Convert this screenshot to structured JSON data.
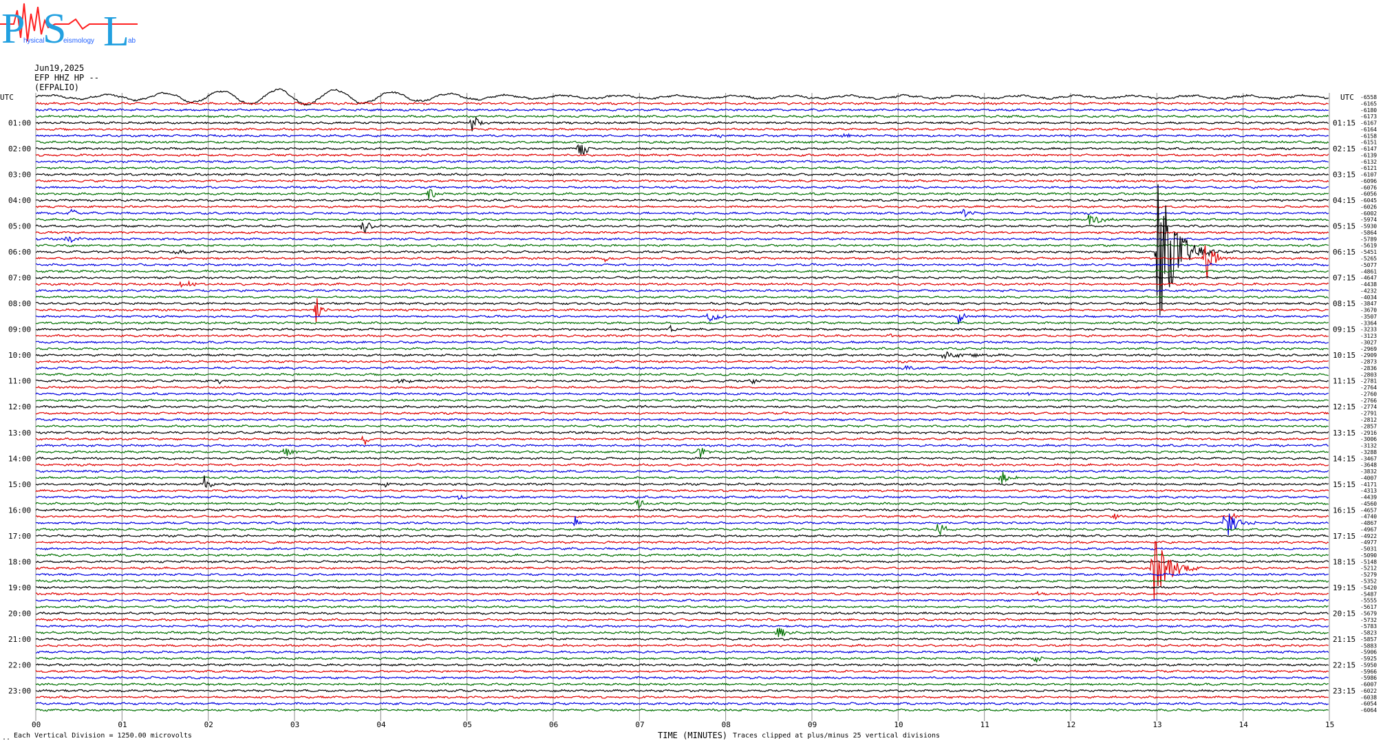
{
  "logo": {
    "letters": [
      "P",
      "S",
      "L"
    ],
    "words": [
      "hysical",
      "eismology",
      "ab"
    ]
  },
  "header": {
    "date": "Jun19,2025",
    "channel": "EFP HHZ HP --",
    "station": "(EFPALIO)"
  },
  "left_axis_label": "UTC",
  "right_axis_label": "UTC",
  "footer": {
    "corner_mark": "..",
    "scale": "Each Vertical Division = 1250.00 microvolts",
    "xlabel": "TIME (MINUTES)",
    "clip_note": "Traces clipped at plus/minus 25 vertical divisions"
  },
  "colors": {
    "cycle": [
      "#000000",
      "#e00000",
      "#0000e0",
      "#007000"
    ],
    "grid": "#8c8c8c"
  },
  "chart_data": {
    "type": "line",
    "title": "",
    "xlabel": "TIME (MINUTES)",
    "xlim": [
      0,
      15
    ],
    "x_ticks": [
      "00",
      "01",
      "02",
      "03",
      "04",
      "05",
      "06",
      "07",
      "08",
      "09",
      "10",
      "11",
      "12",
      "13",
      "14",
      "15"
    ],
    "rows_per_hour": 4,
    "minutes_per_row": 15,
    "row_count": 96,
    "left_hour_labels": [
      "01:00",
      "02:00",
      "03:00",
      "04:00",
      "05:00",
      "06:00",
      "07:00",
      "08:00",
      "09:00",
      "10:00",
      "11:00",
      "12:00",
      "13:00",
      "14:00",
      "15:00",
      "16:00",
      "17:00",
      "18:00",
      "19:00",
      "20:00",
      "21:00",
      "22:00",
      "23:00"
    ],
    "right_hour_labels": [
      "01:15",
      "02:15",
      "03:15",
      "04:15",
      "05:15",
      "06:15",
      "07:15",
      "08:15",
      "09:15",
      "10:15",
      "11:15",
      "12:15",
      "13:15",
      "14:15",
      "15:15",
      "16:15",
      "17:15",
      "18:15",
      "19:15",
      "20:15",
      "21:15",
      "22:15",
      "23:15"
    ],
    "row_offsets": [
      "-6558",
      "-6165",
      "-6180",
      "-6173",
      "-6167",
      "-6164",
      "-6158",
      "-6151",
      "-6147",
      "-6139",
      "-6132",
      "-6121",
      "-6107",
      "-6096",
      "-6076",
      "-6056",
      "-6045",
      "-6026",
      "-6002",
      "-5974",
      "-5930",
      "-5864",
      "-5789",
      "-5619",
      "-5451",
      "-5265",
      "-5077",
      "-4861",
      "-4647",
      "-4438",
      "-4232",
      "-4034",
      "-3847",
      "-3670",
      "-3507",
      "-3364",
      "-3233",
      "-3123",
      "-3027",
      "-2969",
      "-2909",
      "-2873",
      "-2836",
      "-2803",
      "-2781",
      "-2764",
      "-2760",
      "-2766",
      "-2774",
      "-2791",
      "-2812",
      "-2857",
      "-2916",
      "-3006",
      "-3132",
      "-3288",
      "-3467",
      "-3648",
      "-3832",
      "-4007",
      "-4171",
      "-4313",
      "-4439",
      "-4560",
      "-4657",
      "-4740",
      "-4867",
      "-4967",
      "-4922",
      "-4977",
      "-5031",
      "-5090",
      "-5148",
      "-5212",
      "-5279",
      "-5352",
      "-5420",
      "-5487",
      "-5555",
      "-5617",
      "-5679",
      "-5732",
      "-5783",
      "-5823",
      "-5857",
      "-5883",
      "-5906",
      "-5925",
      "-5950",
      "-5966",
      "-5986",
      "-6007",
      "-6022",
      "-6038",
      "-6054",
      "-6064"
    ],
    "swell_rows": [
      0
    ],
    "events": [
      {
        "row": 4,
        "minute": 5.05,
        "amp": 14,
        "duration": 0.35
      },
      {
        "row": 6,
        "minute": 7.9,
        "amp": 4,
        "duration": 0.4
      },
      {
        "row": 6,
        "minute": 9.35,
        "amp": 4,
        "duration": 0.4
      },
      {
        "row": 7,
        "minute": 1.5,
        "amp": 3,
        "duration": 0.2
      },
      {
        "row": 8,
        "minute": 6.3,
        "amp": 26,
        "duration": 0.3
      },
      {
        "row": 15,
        "minute": 4.55,
        "amp": 13,
        "duration": 0.3
      },
      {
        "row": 18,
        "minute": 0.4,
        "amp": 5,
        "duration": 0.5
      },
      {
        "row": 18,
        "minute": 10.75,
        "amp": 10,
        "duration": 0.3
      },
      {
        "row": 19,
        "minute": 12.2,
        "amp": 10,
        "duration": 0.6
      },
      {
        "row": 20,
        "minute": 3.8,
        "amp": 16,
        "duration": 0.3
      },
      {
        "row": 22,
        "minute": 0.35,
        "amp": 7,
        "duration": 0.6
      },
      {
        "row": 24,
        "minute": 1.6,
        "amp": 5,
        "duration": 0.6
      },
      {
        "row": 24,
        "minute": 13.0,
        "amp": 120,
        "duration": 0.9
      },
      {
        "row": 25,
        "minute": 6.6,
        "amp": 5,
        "duration": 0.4
      },
      {
        "row": 25,
        "minute": 13.55,
        "amp": 45,
        "duration": 0.4
      },
      {
        "row": 29,
        "minute": 1.7,
        "amp": 14,
        "duration": 0.3
      },
      {
        "row": 33,
        "minute": 3.25,
        "amp": 28,
        "duration": 0.2
      },
      {
        "row": 34,
        "minute": 7.8,
        "amp": 10,
        "duration": 0.5
      },
      {
        "row": 34,
        "minute": 10.7,
        "amp": 12,
        "duration": 0.3
      },
      {
        "row": 36,
        "minute": 7.35,
        "amp": 6,
        "duration": 0.2
      },
      {
        "row": 37,
        "minute": 9.9,
        "amp": 4,
        "duration": 0.3
      },
      {
        "row": 36,
        "minute": 14.0,
        "amp": 4,
        "duration": 0.4
      },
      {
        "row": 40,
        "minute": 10.5,
        "amp": 5,
        "duration": 1.4
      },
      {
        "row": 42,
        "minute": 10.05,
        "amp": 4,
        "duration": 0.4
      },
      {
        "row": 44,
        "minute": 2.1,
        "amp": 8,
        "duration": 0.2
      },
      {
        "row": 44,
        "minute": 4.2,
        "amp": 4,
        "duration": 0.5
      },
      {
        "row": 44,
        "minute": 8.3,
        "amp": 4,
        "duration": 0.3
      },
      {
        "row": 46,
        "minute": 11.5,
        "amp": 3,
        "duration": 0.3
      },
      {
        "row": 48,
        "minute": 7.0,
        "amp": 4,
        "duration": 0.3
      },
      {
        "row": 53,
        "minute": 3.8,
        "amp": 14,
        "duration": 0.2
      },
      {
        "row": 55,
        "minute": 2.9,
        "amp": 12,
        "duration": 0.3
      },
      {
        "row": 55,
        "minute": 7.7,
        "amp": 14,
        "duration": 0.2
      },
      {
        "row": 56,
        "minute": 1.6,
        "amp": 3,
        "duration": 0.3
      },
      {
        "row": 58,
        "minute": 3.6,
        "amp": 4,
        "duration": 0.5
      },
      {
        "row": 59,
        "minute": 11.2,
        "amp": 10,
        "duration": 0.4
      },
      {
        "row": 60,
        "minute": 1.95,
        "amp": 13,
        "duration": 0.3
      },
      {
        "row": 60,
        "minute": 4.05,
        "amp": 5,
        "duration": 0.2
      },
      {
        "row": 62,
        "minute": 4.9,
        "amp": 4,
        "duration": 0.5
      },
      {
        "row": 63,
        "minute": 6.95,
        "amp": 14,
        "duration": 0.3
      },
      {
        "row": 65,
        "minute": 12.5,
        "amp": 6,
        "duration": 0.3
      },
      {
        "row": 65,
        "minute": 13.85,
        "amp": 8,
        "duration": 0.3
      },
      {
        "row": 66,
        "minute": 6.25,
        "amp": 13,
        "duration": 0.2
      },
      {
        "row": 66,
        "minute": 13.8,
        "amp": 28,
        "duration": 0.5
      },
      {
        "row": 67,
        "minute": 3.0,
        "amp": 4,
        "duration": 0.3
      },
      {
        "row": 67,
        "minute": 10.45,
        "amp": 18,
        "duration": 0.3
      },
      {
        "row": 73,
        "minute": 12.95,
        "amp": 55,
        "duration": 0.8
      },
      {
        "row": 76,
        "minute": 7.2,
        "amp": 3,
        "duration": 0.4
      },
      {
        "row": 77,
        "minute": 11.6,
        "amp": 5,
        "duration": 0.3
      },
      {
        "row": 83,
        "minute": 8.6,
        "amp": 9,
        "duration": 0.4
      },
      {
        "row": 87,
        "minute": 11.6,
        "amp": 8,
        "duration": 0.2
      },
      {
        "row": 90,
        "minute": 1.35,
        "amp": 2,
        "duration": 0.2
      }
    ]
  }
}
